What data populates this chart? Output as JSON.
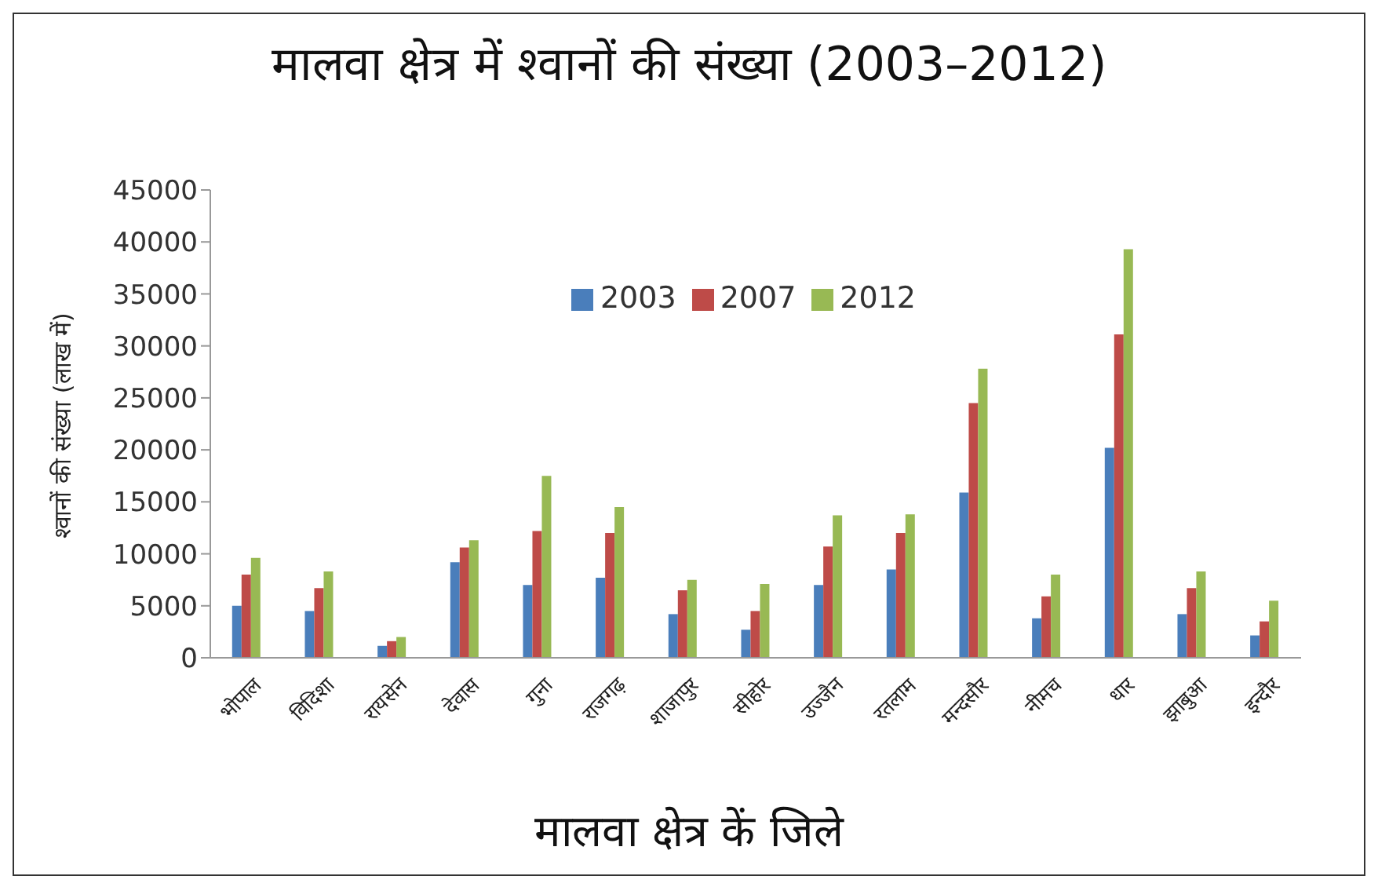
{
  "chart_data": {
    "type": "bar",
    "title": "मालवा क्षेत्र में श्वानों की संख्या (2003–2012)",
    "xlabel": "मालवा क्षेत्र कें जिले",
    "ylabel": "श्वानों की संख्या (लाख में)",
    "categories": [
      "भोपाल",
      "विदिशा",
      "रायसेन",
      "देवास",
      "गुना",
      "राजगढ़",
      "शाजापुर",
      "सीहोर",
      "उज्जैन",
      "रतलाम",
      "मन्दसौर",
      "नीमच",
      "धार",
      "झाबुआ",
      "इन्दौर"
    ],
    "series": [
      {
        "name": "2003",
        "color": "#4a7ebb",
        "values": [
          5000,
          4500,
          1150,
          9200,
          7000,
          7700,
          4200,
          2700,
          7000,
          8500,
          15900,
          3800,
          20200,
          4200,
          2150
        ]
      },
      {
        "name": "2007",
        "color": "#be4b48",
        "values": [
          8000,
          6700,
          1600,
          10600,
          12200,
          12000,
          6500,
          4500,
          10700,
          12000,
          24500,
          5900,
          31100,
          6700,
          3500
        ]
      },
      {
        "name": "2012",
        "color": "#98b954",
        "values": [
          9600,
          8300,
          2000,
          11300,
          17500,
          14500,
          7500,
          7100,
          13700,
          13800,
          27800,
          8000,
          39300,
          8300,
          5500
        ]
      }
    ],
    "ylim": [
      0,
      45000
    ],
    "yticks": [
      0,
      5000,
      10000,
      15000,
      20000,
      25000,
      30000,
      35000,
      40000,
      45000
    ],
    "grid": false,
    "legend": "top"
  }
}
